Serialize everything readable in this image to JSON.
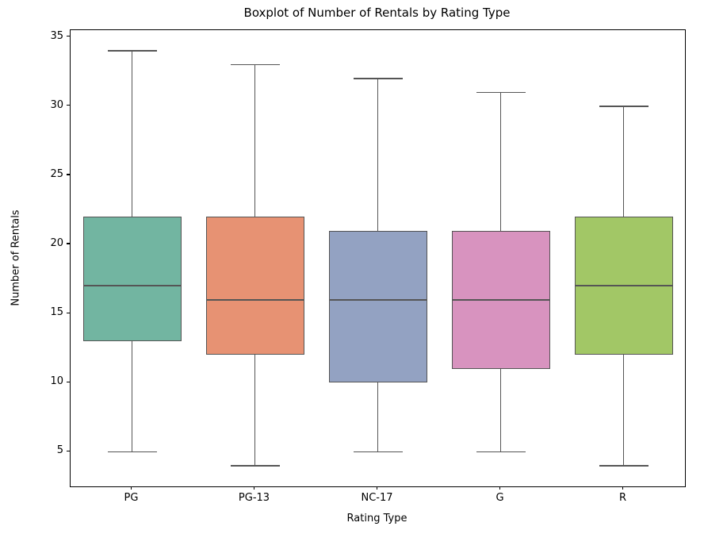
{
  "chart_data": {
    "type": "box",
    "title": "Boxplot of Number of Rentals by Rating Type",
    "xlabel": "Rating Type",
    "ylabel": "Number of Rentals",
    "categories": [
      "PG",
      "PG-13",
      "NC-17",
      "G",
      "R"
    ],
    "series": [
      {
        "name": "PG",
        "whisker_low": 5,
        "q1": 13,
        "median": 17,
        "q3": 22,
        "whisker_high": 34,
        "fill_color": "#72b5a1"
      },
      {
        "name": "PG-13",
        "whisker_low": 4,
        "q1": 12,
        "median": 16,
        "q3": 22,
        "whisker_high": 33,
        "fill_color": "#e79273"
      },
      {
        "name": "NC-17",
        "whisker_low": 5,
        "q1": 10,
        "median": 16,
        "q3": 21,
        "whisker_high": 32,
        "fill_color": "#93a2c2"
      },
      {
        "name": "G",
        "whisker_low": 5,
        "q1": 11,
        "median": 16,
        "q3": 21,
        "whisker_high": 31,
        "fill_color": "#d893bf"
      },
      {
        "name": "R",
        "whisker_low": 4,
        "q1": 12,
        "median": 17,
        "q3": 22,
        "whisker_high": 30,
        "fill_color": "#a2c766"
      }
    ],
    "yticks": [
      5,
      10,
      15,
      20,
      25,
      30,
      35
    ],
    "ylim": [
      2.5,
      35.5
    ],
    "grid": false,
    "legend": "none",
    "line_color": "#555555",
    "spine_color": "#000000",
    "text_color": "#000000",
    "background_color": "#ffffff"
  }
}
